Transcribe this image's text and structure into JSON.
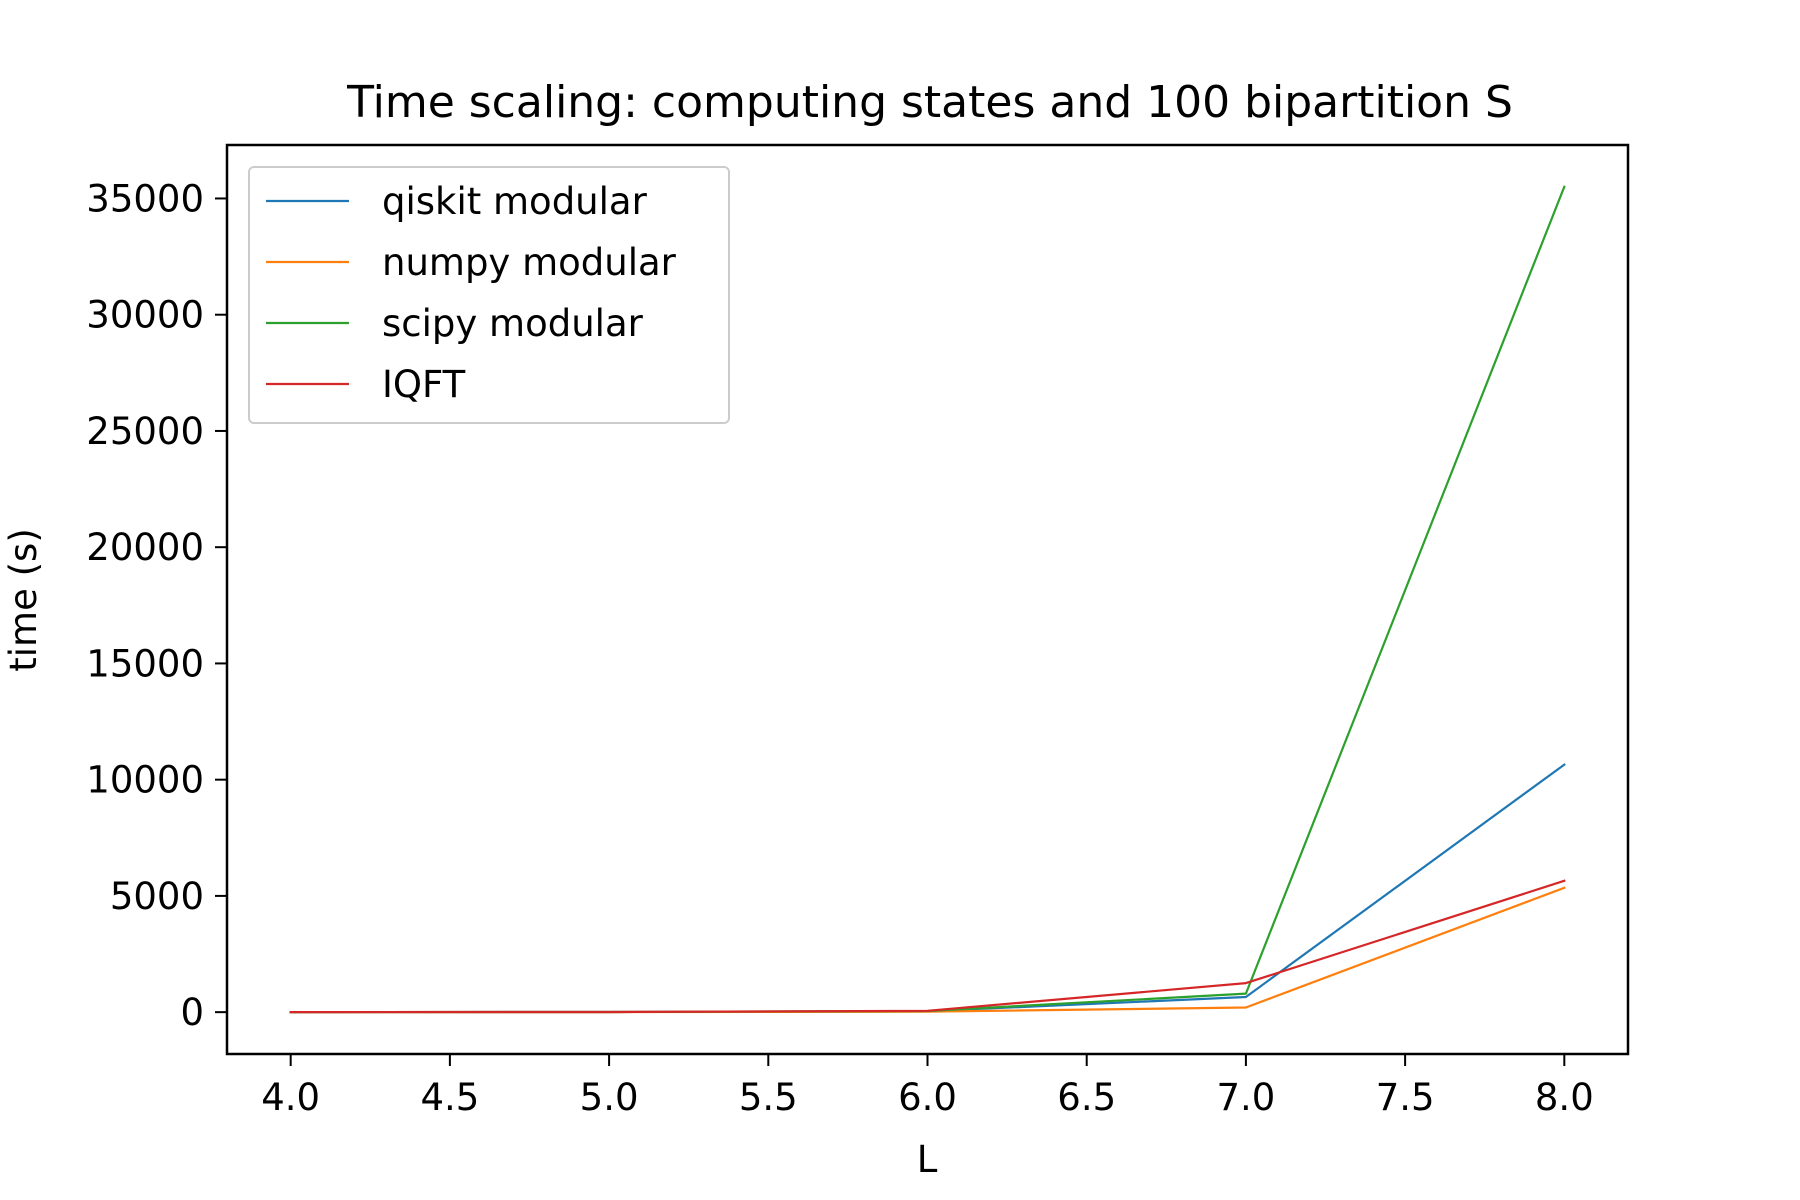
{
  "chart_data": {
    "type": "line",
    "title": "Time scaling: computing states and 100 bipartition S",
    "xlabel": "L",
    "ylabel": "time (s)",
    "xlim": [
      3.8,
      8.2
    ],
    "ylim": [
      -1800,
      37300
    ],
    "x": [
      4,
      5,
      6,
      7,
      8
    ],
    "x_ticks": [
      4.0,
      4.5,
      5.0,
      5.5,
      6.0,
      6.5,
      7.0,
      7.5,
      8.0
    ],
    "x_tick_labels": [
      "4.0",
      "4.5",
      "5.0",
      "5.5",
      "6.0",
      "6.5",
      "7.0",
      "7.5",
      "8.0"
    ],
    "y_ticks": [
      0,
      5000,
      10000,
      15000,
      20000,
      25000,
      30000,
      35000
    ],
    "y_tick_labels": [
      "0",
      "5000",
      "10000",
      "15000",
      "20000",
      "25000",
      "30000",
      "35000"
    ],
    "grid": false,
    "legend_position": "top-left",
    "series": [
      {
        "name": "qiskit modular",
        "color": "#1f77b4",
        "values": [
          1,
          5,
          40,
          650,
          10650
        ]
      },
      {
        "name": "numpy modular",
        "color": "#ff7f0e",
        "values": [
          0.5,
          3,
          20,
          200,
          5350
        ]
      },
      {
        "name": "scipy modular",
        "color": "#2ca02c",
        "values": [
          1,
          6,
          50,
          800,
          35500
        ]
      },
      {
        "name": "IQFT",
        "color": "#d62728",
        "values": [
          1,
          8,
          60,
          1250,
          5650
        ]
      }
    ]
  }
}
